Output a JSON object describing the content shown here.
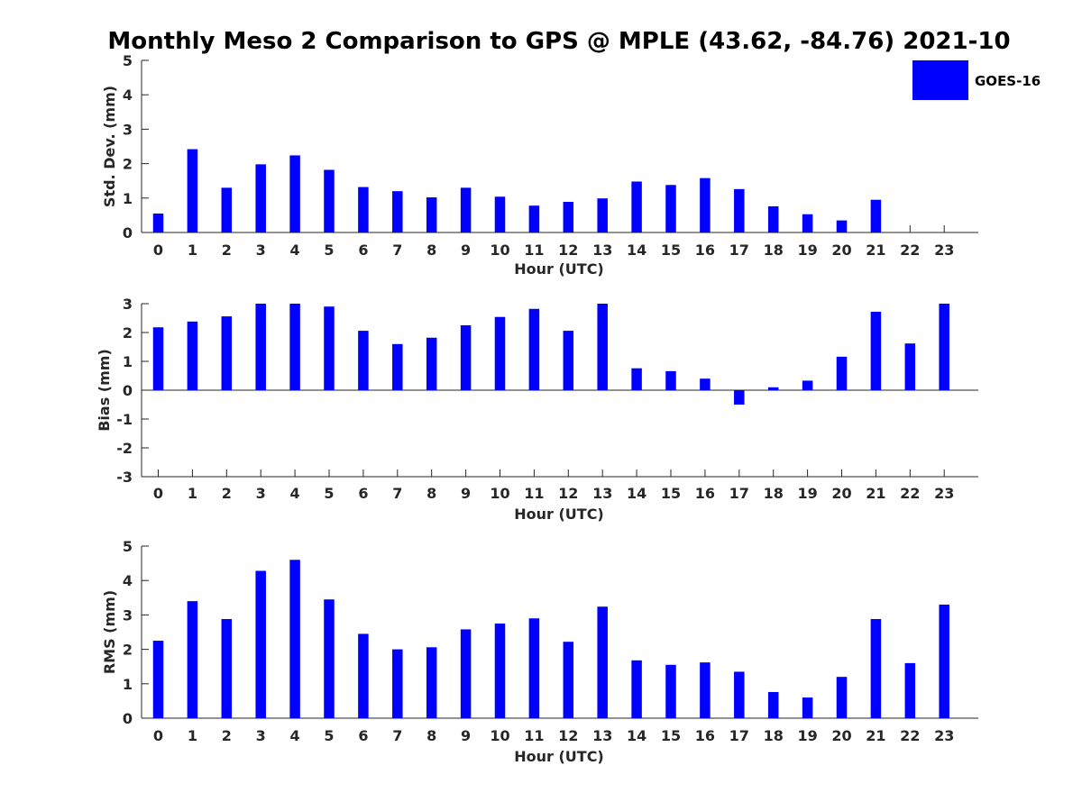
{
  "figure": {
    "title": "Monthly Meso 2 Comparison to GPS @ MPLE (43.62, -84.76) 2021-10"
  },
  "legend": {
    "label": "GOES-16",
    "placement": "top-right",
    "color": "#0000ff"
  },
  "chart_data": [
    {
      "type": "bar",
      "xlabel": "Hour (UTC)",
      "ylabel": "Std. Dev. (mm)",
      "ylim": [
        0,
        5
      ],
      "yticks": [
        0,
        1,
        2,
        3,
        4,
        5
      ],
      "categories": [
        "0",
        "1",
        "2",
        "3",
        "4",
        "5",
        "6",
        "7",
        "8",
        "9",
        "10",
        "11",
        "12",
        "13",
        "14",
        "15",
        "16",
        "17",
        "18",
        "19",
        "20",
        "21",
        "22",
        "23"
      ],
      "series": [
        {
          "name": "GOES-16",
          "color": "#0000ff",
          "values": [
            0.55,
            2.42,
            1.3,
            1.98,
            2.24,
            1.82,
            1.32,
            1.2,
            1.02,
            1.3,
            1.04,
            0.78,
            0.89,
            0.99,
            1.48,
            1.38,
            1.58,
            1.26,
            0.76,
            0.53,
            0.35,
            0.95,
            null,
            null
          ]
        }
      ]
    },
    {
      "type": "bar",
      "xlabel": "Hour (UTC)",
      "ylabel": "Bias (mm)",
      "ylim": [
        -3,
        3
      ],
      "yticks": [
        -3,
        -2,
        -1,
        0,
        1,
        2,
        3
      ],
      "zero_line": true,
      "categories": [
        "0",
        "1",
        "2",
        "3",
        "4",
        "5",
        "6",
        "7",
        "8",
        "9",
        "10",
        "11",
        "12",
        "13",
        "14",
        "15",
        "16",
        "17",
        "18",
        "19",
        "20",
        "21",
        "22",
        "23"
      ],
      "series": [
        {
          "name": "GOES-16",
          "color": "#0000ff",
          "values": [
            2.18,
            2.38,
            2.56,
            3.0,
            3.0,
            2.9,
            2.06,
            1.6,
            1.82,
            2.25,
            2.54,
            2.82,
            2.06,
            3.0,
            0.76,
            0.66,
            0.4,
            -0.5,
            0.1,
            0.33,
            1.16,
            2.72,
            1.62,
            3.0
          ]
        }
      ]
    },
    {
      "type": "bar",
      "xlabel": "Hour (UTC)",
      "ylabel": "RMS (mm)",
      "ylim": [
        0,
        5
      ],
      "yticks": [
        0,
        1,
        2,
        3,
        4,
        5
      ],
      "categories": [
        "0",
        "1",
        "2",
        "3",
        "4",
        "5",
        "6",
        "7",
        "8",
        "9",
        "10",
        "11",
        "12",
        "13",
        "14",
        "15",
        "16",
        "17",
        "18",
        "19",
        "20",
        "21",
        "22",
        "23"
      ],
      "series": [
        {
          "name": "GOES-16",
          "color": "#0000ff",
          "values": [
            2.25,
            3.4,
            2.88,
            4.28,
            4.6,
            3.45,
            2.45,
            2.0,
            2.06,
            2.58,
            2.75,
            2.9,
            2.22,
            3.24,
            1.68,
            1.55,
            1.62,
            1.35,
            0.76,
            0.6,
            1.2,
            2.88,
            1.6,
            3.3
          ]
        }
      ]
    }
  ]
}
